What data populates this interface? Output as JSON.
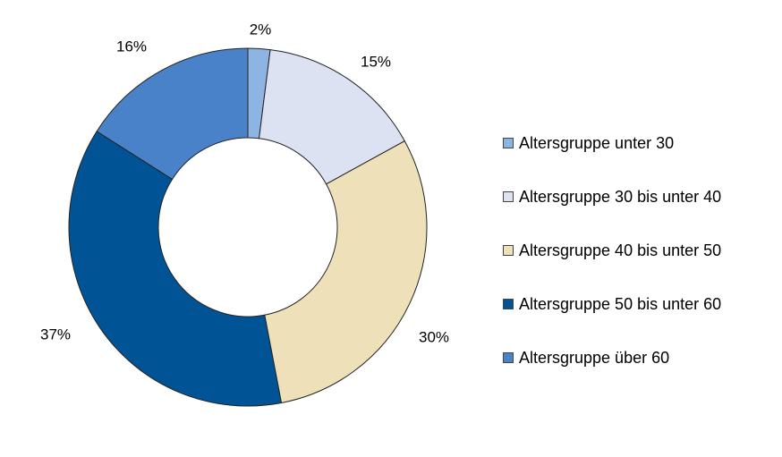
{
  "chart_data": {
    "type": "pie",
    "donut": true,
    "legend_position": "right",
    "slices": [
      {
        "name": "Altersgruppe unter 30",
        "value": 2,
        "label": "2%",
        "color": "#8EB4E3"
      },
      {
        "name": "Altersgruppe 30 bis unter 40",
        "value": 15,
        "label": "15%",
        "color": "#DCE2F1"
      },
      {
        "name": "Altersgruppe 40 bis unter 50",
        "value": 30,
        "label": "30%",
        "color": "#EEE1BA"
      },
      {
        "name": "Altersgruppe 50 bis unter 60",
        "value": 37,
        "label": "37%",
        "color": "#005496"
      },
      {
        "name": "Altersgruppe über 60",
        "value": 16,
        "label": "16%",
        "color": "#4A82C9"
      }
    ]
  }
}
